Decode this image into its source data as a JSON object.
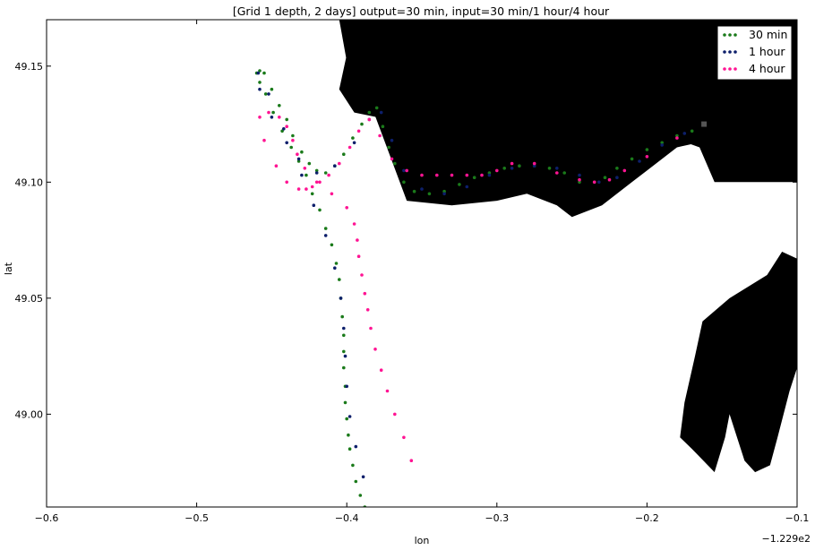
{
  "chart_data": {
    "type": "scatter",
    "title": "[Grid 1 depth, 2 days] output=30 min, input=30 min/1 hour/4 hour",
    "xlabel": "lon",
    "ylabel": "lat",
    "x_offset_label": "−1.229e2",
    "xlim": [
      -0.6,
      -0.1
    ],
    "ylim": [
      48.96,
      49.17
    ],
    "x_ticks": [
      -0.6,
      -0.5,
      -0.4,
      -0.3,
      -0.2,
      -0.1
    ],
    "x_tick_labels": [
      "−0.6",
      "−0.5",
      "−0.4",
      "−0.3",
      "−0.2",
      "−0.1"
    ],
    "y_ticks": [
      49.0,
      49.05,
      49.1,
      49.15
    ],
    "y_tick_labels": [
      "49.00",
      "49.05",
      "49.10",
      "49.15"
    ],
    "grid": false,
    "legend_position": "top-right",
    "start_marker": {
      "x": -0.162,
      "y": 49.125,
      "color": "#555555"
    },
    "land_color": "#000000",
    "land": [
      [
        [
          -0.405,
          49.17
        ],
        [
          -0.1,
          49.17
        ],
        [
          -0.1,
          49.067
        ],
        [
          -0.11,
          49.07
        ],
        [
          -0.12,
          49.06
        ],
        [
          -0.145,
          49.05
        ],
        [
          -0.163,
          49.04
        ],
        [
          -0.168,
          49.025
        ],
        [
          -0.175,
          49.005
        ],
        [
          -0.178,
          48.99
        ],
        [
          -0.17,
          48.985
        ],
        [
          -0.155,
          48.975
        ],
        [
          -0.148,
          48.99
        ],
        [
          -0.145,
          49.0
        ],
        [
          -0.135,
          48.98
        ],
        [
          -0.128,
          48.975
        ],
        [
          -0.118,
          48.978
        ],
        [
          -0.113,
          48.99
        ],
        [
          -0.105,
          49.01
        ],
        [
          -0.1,
          49.02
        ],
        [
          -0.1,
          49.1
        ],
        [
          -0.155,
          49.1
        ],
        [
          -0.165,
          49.115
        ],
        [
          -0.178,
          49.118
        ],
        [
          -0.2,
          49.113
        ],
        [
          -0.215,
          49.105
        ],
        [
          -0.232,
          49.1
        ],
        [
          -0.25,
          49.1
        ],
        [
          -0.265,
          49.105
        ],
        [
          -0.29,
          49.107
        ],
        [
          -0.31,
          49.104
        ],
        [
          -0.33,
          49.105
        ],
        [
          -0.355,
          49.11
        ],
        [
          -0.37,
          49.118
        ],
        [
          -0.38,
          49.128
        ],
        [
          -0.395,
          49.13
        ],
        [
          -0.405,
          49.14
        ],
        [
          -0.4,
          49.152
        ],
        [
          -0.405,
          49.17
        ]
      ],
      [
        [
          -0.405,
          49.17
        ],
        [
          -0.4,
          49.155
        ],
        [
          -0.405,
          49.14
        ],
        [
          -0.36,
          49.13
        ],
        [
          -0.33,
          49.128
        ],
        [
          -0.31,
          49.115
        ],
        [
          -0.285,
          49.12
        ],
        [
          -0.27,
          49.115
        ],
        [
          -0.255,
          49.118
        ],
        [
          -0.235,
          49.113
        ],
        [
          -0.22,
          49.115
        ],
        [
          -0.2,
          49.12
        ],
        [
          -0.17,
          49.13
        ],
        [
          -0.155,
          49.132
        ],
        [
          -0.137,
          49.137
        ],
        [
          -0.135,
          49.125
        ],
        [
          -0.145,
          49.12
        ],
        [
          -0.18,
          49.115
        ],
        [
          -0.2,
          49.105
        ],
        [
          -0.21,
          49.1
        ],
        [
          -0.23,
          49.09
        ],
        [
          -0.25,
          49.085
        ],
        [
          -0.26,
          49.09
        ],
        [
          -0.28,
          49.095
        ],
        [
          -0.3,
          49.092
        ],
        [
          -0.33,
          49.09
        ],
        [
          -0.36,
          49.092
        ],
        [
          -0.405,
          49.17
        ]
      ]
    ],
    "series": [
      {
        "name": "30 min",
        "color": "#1a7a1a",
        "x": [
          -0.162,
          -0.17,
          -0.18,
          -0.19,
          -0.2,
          -0.21,
          -0.22,
          -0.228,
          -0.235,
          -0.245,
          -0.255,
          -0.265,
          -0.275,
          -0.285,
          -0.295,
          -0.305,
          -0.315,
          -0.325,
          -0.335,
          -0.345,
          -0.355,
          -0.362,
          -0.368,
          -0.372,
          -0.376,
          -0.38,
          -0.385,
          -0.39,
          -0.396,
          -0.402,
          -0.408,
          -0.414,
          -0.42,
          -0.425,
          -0.43,
          -0.436,
          -0.44,
          -0.445,
          -0.45,
          -0.455,
          -0.458,
          -0.46,
          -0.458,
          -0.454,
          -0.449,
          -0.443,
          -0.437,
          -0.432,
          -0.427,
          -0.423,
          -0.418,
          -0.414,
          -0.41,
          -0.407,
          -0.405,
          -0.404,
          -0.403,
          -0.402,
          -0.402,
          -0.402,
          -0.401,
          -0.401,
          -0.4,
          -0.399,
          -0.398,
          -0.396,
          -0.394,
          -0.391,
          -0.388
        ],
        "y": [
          49.125,
          49.122,
          49.12,
          49.117,
          49.114,
          49.11,
          49.106,
          49.102,
          49.1,
          49.1,
          49.104,
          49.106,
          49.107,
          49.107,
          49.106,
          49.104,
          49.102,
          49.099,
          49.096,
          49.095,
          49.096,
          49.1,
          49.108,
          49.115,
          49.124,
          49.132,
          49.13,
          49.125,
          49.119,
          49.112,
          49.107,
          49.104,
          49.105,
          49.108,
          49.113,
          49.12,
          49.127,
          49.133,
          49.14,
          49.147,
          49.148,
          49.147,
          49.143,
          49.138,
          49.13,
          49.122,
          49.115,
          49.109,
          49.103,
          49.095,
          49.088,
          49.08,
          49.073,
          49.065,
          49.058,
          49.05,
          49.042,
          49.034,
          49.027,
          49.02,
          49.012,
          49.005,
          48.998,
          48.991,
          48.985,
          48.978,
          48.971,
          48.965,
          48.96
        ]
      },
      {
        "name": "1 hour",
        "color": "#0d1f6b",
        "x": [
          -0.162,
          -0.175,
          -0.19,
          -0.205,
          -0.22,
          -0.232,
          -0.245,
          -0.26,
          -0.275,
          -0.29,
          -0.305,
          -0.32,
          -0.335,
          -0.35,
          -0.362,
          -0.37,
          -0.377,
          -0.385,
          -0.395,
          -0.408,
          -0.42,
          -0.432,
          -0.442,
          -0.452,
          -0.459,
          -0.458,
          -0.45,
          -0.44,
          -0.43,
          -0.422,
          -0.414,
          -0.408,
          -0.404,
          -0.402,
          -0.401,
          -0.4,
          -0.398,
          -0.394,
          -0.389
        ],
        "y": [
          49.125,
          49.121,
          49.116,
          49.109,
          49.102,
          49.1,
          49.103,
          49.106,
          49.107,
          49.106,
          49.103,
          49.098,
          49.095,
          49.097,
          49.105,
          49.118,
          49.13,
          49.127,
          49.117,
          49.107,
          49.104,
          49.11,
          49.123,
          49.138,
          49.147,
          49.14,
          49.128,
          49.117,
          49.103,
          49.09,
          49.077,
          49.063,
          49.05,
          49.037,
          49.025,
          49.012,
          48.999,
          48.986,
          48.973
        ]
      },
      {
        "name": "4 hour",
        "color": "#ff1493",
        "x": [
          -0.162,
          -0.18,
          -0.2,
          -0.215,
          -0.225,
          -0.235,
          -0.245,
          -0.26,
          -0.275,
          -0.29,
          -0.3,
          -0.31,
          -0.32,
          -0.33,
          -0.34,
          -0.35,
          -0.36,
          -0.37,
          -0.378,
          -0.385,
          -0.392,
          -0.398,
          -0.405,
          -0.412,
          -0.418,
          -0.423,
          -0.427,
          -0.432,
          -0.44,
          -0.447,
          -0.455,
          -0.458,
          -0.452,
          -0.445,
          -0.44,
          -0.436,
          -0.433,
          -0.428,
          -0.42,
          -0.41,
          -0.4,
          -0.395,
          -0.393,
          -0.392,
          -0.39,
          -0.388,
          -0.386,
          -0.384,
          -0.381,
          -0.377,
          -0.373,
          -0.368,
          -0.362,
          -0.357
        ],
        "y": [
          49.125,
          49.119,
          49.111,
          49.105,
          49.101,
          49.1,
          49.101,
          49.104,
          49.108,
          49.108,
          49.105,
          49.103,
          49.103,
          49.103,
          49.103,
          49.103,
          49.105,
          49.11,
          49.12,
          49.127,
          49.122,
          49.115,
          49.108,
          49.103,
          49.1,
          49.098,
          49.097,
          49.097,
          49.1,
          49.107,
          49.118,
          49.128,
          49.13,
          49.128,
          49.124,
          49.118,
          49.112,
          49.106,
          49.1,
          49.095,
          49.089,
          49.082,
          49.075,
          49.068,
          49.06,
          49.052,
          49.045,
          49.037,
          49.028,
          49.019,
          49.01,
          49.0,
          48.99,
          48.98
        ]
      }
    ]
  }
}
